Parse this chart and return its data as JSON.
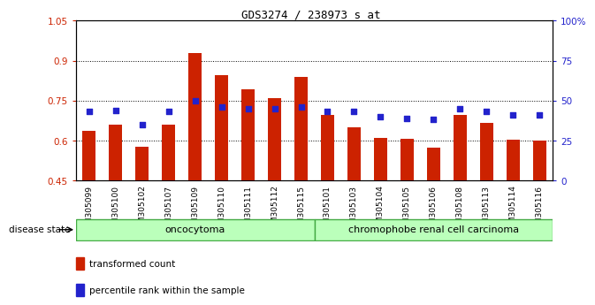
{
  "title": "GDS3274 / 238973_s_at",
  "samples": [
    "GSM305099",
    "GSM305100",
    "GSM305102",
    "GSM305107",
    "GSM305109",
    "GSM305110",
    "GSM305111",
    "GSM305112",
    "GSM305115",
    "GSM305101",
    "GSM305103",
    "GSM305104",
    "GSM305105",
    "GSM305106",
    "GSM305108",
    "GSM305113",
    "GSM305114",
    "GSM305116"
  ],
  "transformed_count": [
    0.635,
    0.66,
    0.578,
    0.66,
    0.928,
    0.845,
    0.793,
    0.76,
    0.84,
    0.695,
    0.648,
    0.608,
    0.605,
    0.574,
    0.695,
    0.665,
    0.603,
    0.6
  ],
  "percentile_rank": [
    43,
    44,
    35,
    43,
    50,
    46,
    45,
    45,
    46,
    43,
    43,
    40,
    39,
    38,
    45,
    43,
    41,
    41
  ],
  "ylim_left": [
    0.45,
    1.05
  ],
  "ylim_right": [
    0,
    100
  ],
  "yticks_left": [
    0.45,
    0.6,
    0.75,
    0.9,
    1.05
  ],
  "yticks_right": [
    0,
    25,
    50,
    75,
    100
  ],
  "ytick_labels_left": [
    "0.45",
    "0.6",
    "0.75",
    "0.9",
    "1.05"
  ],
  "ytick_labels_right": [
    "0",
    "25",
    "50",
    "75",
    "100%"
  ],
  "bar_color": "#cc2200",
  "dot_color": "#2222cc",
  "group1_label": "oncocytoma",
  "group2_label": "chromophobe renal cell carcinoma",
  "group1_count": 9,
  "group2_count": 9,
  "group_bg_color": "#bbffbb",
  "group_edge_color": "#44aa44",
  "disease_state_label": "disease state",
  "legend_bar_label": "transformed count",
  "legend_dot_label": "percentile rank within the sample",
  "axis_bg_color": "#ffffff",
  "bar_bottom": 0.45,
  "bar_width": 0.5
}
